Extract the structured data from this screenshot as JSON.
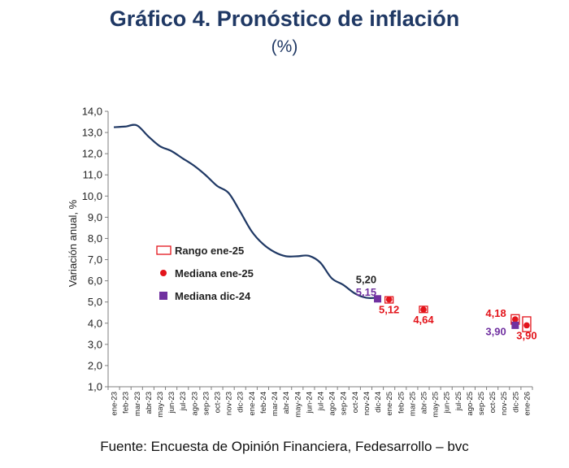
{
  "header": {
    "title": "Gráfico 4. Pronóstico de inflación",
    "subtitle": "(%)"
  },
  "footer": {
    "source": "Fuente: Encuesta de Opinión Financiera, Fedesarrollo – bvc"
  },
  "colors": {
    "title": "#1f3864",
    "line": "#1f3864",
    "red": "#e3141b",
    "purple": "#7030a0",
    "axis": "#7f7f7f",
    "text": "#222222"
  },
  "chart_data": {
    "type": "line",
    "ylabel": "Variación anual, %",
    "xlabel": "",
    "ylim": [
      1.0,
      14.0
    ],
    "yticks": [
      1.0,
      2.0,
      3.0,
      4.0,
      5.0,
      6.0,
      7.0,
      8.0,
      9.0,
      10.0,
      11.0,
      12.0,
      13.0,
      14.0
    ],
    "ytick_labels": [
      "1,0",
      "2,0",
      "3,0",
      "4,0",
      "5,0",
      "6,0",
      "7,0",
      "8,0",
      "9,0",
      "10,0",
      "11,0",
      "12,0",
      "13,0",
      "14,0"
    ],
    "categories": [
      "ene-23",
      "feb-23",
      "mar-23",
      "abr-23",
      "may-23",
      "jun-23",
      "jul-23",
      "ago-23",
      "sep-23",
      "oct-23",
      "nov-23",
      "dic-23",
      "ene-24",
      "feb-24",
      "mar-24",
      "abr-24",
      "may-24",
      "jun-24",
      "jul-24",
      "ago-24",
      "sep-24",
      "oct-24",
      "nov-24",
      "dic-24",
      "ene-25",
      "feb-25",
      "mar-25",
      "abr-25",
      "may-25",
      "jun-25",
      "jul-25",
      "ago-25",
      "sep-25",
      "oct-25",
      "nov-25",
      "dic-25",
      "ene-26"
    ],
    "grid": false,
    "legend_position": "left-middle",
    "series": [
      {
        "kind": "line",
        "points": [
          [
            "ene-23",
            13.25
          ],
          [
            "feb-23",
            13.28
          ],
          [
            "mar-23",
            13.34
          ],
          [
            "abr-23",
            12.82
          ],
          [
            "may-23",
            12.36
          ],
          [
            "jun-23",
            12.13
          ],
          [
            "jul-23",
            11.78
          ],
          [
            "ago-23",
            11.43
          ],
          [
            "sep-23",
            10.99
          ],
          [
            "oct-23",
            10.48
          ],
          [
            "nov-23",
            10.15
          ],
          [
            "dic-23",
            9.28
          ],
          [
            "ene-24",
            8.35
          ],
          [
            "feb-24",
            7.74
          ],
          [
            "mar-24",
            7.36
          ],
          [
            "abr-24",
            7.16
          ],
          [
            "may-24",
            7.16
          ],
          [
            "jun-24",
            7.18
          ],
          [
            "jul-24",
            6.86
          ],
          [
            "ago-24",
            6.12
          ],
          [
            "sep-24",
            5.81
          ],
          [
            "oct-24",
            5.41
          ],
          [
            "nov-24",
            5.2
          ],
          [
            "dic-24",
            5.2
          ]
        ]
      },
      {
        "name": "Mediana ene-25",
        "kind": "dot",
        "points": [
          [
            "ene-25",
            5.12
          ],
          [
            "abr-25",
            4.64
          ],
          [
            "dic-25",
            4.18
          ],
          [
            "ene-26",
            3.9
          ]
        ]
      },
      {
        "name": "Mediana dic-24",
        "kind": "square",
        "points": [
          [
            "dic-24",
            5.15
          ],
          [
            "dic-25",
            3.9
          ]
        ]
      },
      {
        "name": "Rango ene-25",
        "kind": "range",
        "ranges": [
          [
            "ene-25",
            4.95,
            5.25
          ],
          [
            "abr-25",
            4.5,
            4.8
          ],
          [
            "dic-25",
            3.95,
            4.4
          ],
          [
            "ene-26",
            3.6,
            4.3
          ]
        ]
      }
    ],
    "legend": [
      {
        "label": "Rango ene-25",
        "kind": "range"
      },
      {
        "label": "Mediana ene-25",
        "kind": "dot"
      },
      {
        "label": "Mediana dic-24",
        "kind": "square"
      }
    ],
    "annotations": [
      {
        "text": "5,20",
        "at": "nov-24",
        "value": 5.2,
        "color": "text",
        "pos": "above"
      },
      {
        "text": "5,15",
        "at": "nov-24",
        "value": 5.15,
        "color": "purple",
        "pos": "below-label"
      },
      {
        "text": "5,12",
        "at": "ene-25",
        "value": 5.12,
        "color": "red",
        "pos": "below"
      },
      {
        "text": "4,64",
        "at": "abr-25",
        "value": 4.64,
        "color": "red",
        "pos": "below"
      },
      {
        "text": "4,18",
        "at": "nov-25",
        "value": 4.18,
        "color": "red",
        "pos": "left"
      },
      {
        "text": "3,90",
        "at": "nov-25",
        "value": 3.9,
        "color": "purple",
        "pos": "left"
      },
      {
        "text": "3,90",
        "at": "ene-26",
        "value": 3.9,
        "color": "red",
        "pos": "below"
      }
    ]
  }
}
